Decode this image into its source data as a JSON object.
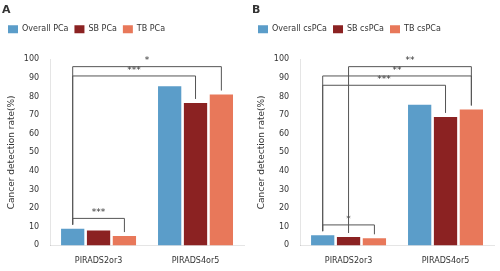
{
  "chart_data": [
    {
      "type": "bar",
      "title": "A",
      "categories": [
        "PIRADS2or3",
        "PIRADS4or5"
      ],
      "series": [
        {
          "name": "Overall PCa",
          "color": "#5B9DC9",
          "values": [
            9.0,
            85.5
          ]
        },
        {
          "name": "SB PCa",
          "color": "#8B2222",
          "values": [
            8.0,
            76.5
          ]
        },
        {
          "name": "TB PCa",
          "color": "#E8785A",
          "values": [
            5.0,
            81.0
          ]
        }
      ],
      "ylabel": "Cancer detection rate(%)",
      "ylim": [
        0,
        100
      ],
      "yticks": [
        0,
        10,
        20,
        30,
        40,
        50,
        60,
        70,
        80,
        90,
        100
      ],
      "grid": false,
      "legend": "upper left",
      "annotations": [
        {
          "label": "***",
          "y": 14.5,
          "from": {
            "category": "PIRADS2or3",
            "series": "Overall PCa"
          },
          "to": {
            "category": "PIRADS2or3",
            "series": "TB PCa"
          }
        },
        {
          "label": "***",
          "y": 91,
          "from": {
            "category": "PIRADS2or3",
            "series": "Overall PCa"
          },
          "to": {
            "category": "PIRADS4or5",
            "series": "SB PCa"
          }
        },
        {
          "label": "*",
          "y": 96,
          "from": {
            "category": "PIRADS2or3",
            "series": "Overall PCa"
          },
          "to": {
            "category": "PIRADS4or5",
            "series": "TB PCa"
          }
        }
      ]
    },
    {
      "type": "bar",
      "title": "B",
      "categories": [
        "PIRADS2or3",
        "PIRADS4or5"
      ],
      "series": [
        {
          "name": "Overall csPCa",
          "color": "#5B9DC9",
          "values": [
            5.5,
            75.5
          ]
        },
        {
          "name": "SB csPCa",
          "color": "#8B2222",
          "values": [
            4.5,
            69.0
          ]
        },
        {
          "name": "TB csPCa",
          "color": "#E8785A",
          "values": [
            3.8,
            73.0
          ]
        }
      ],
      "ylabel": "Cancer detection rate(%)",
      "ylim": [
        0,
        100
      ],
      "yticks": [
        0,
        10,
        20,
        30,
        40,
        50,
        60,
        70,
        80,
        90,
        100
      ],
      "grid": false,
      "legend": "upper left",
      "annotations": [
        {
          "label": "*",
          "y": 11,
          "from": {
            "category": "PIRADS2or3",
            "series": "Overall csPCa"
          },
          "to": {
            "category": "PIRADS2or3",
            "series": "TB csPCa"
          }
        },
        {
          "label": "***",
          "y": 86,
          "from": {
            "category": "PIRADS2or3",
            "series": "Overall csPCa"
          },
          "to": {
            "category": "PIRADS4or5",
            "series": "SB csPCa"
          }
        },
        {
          "label": "**",
          "y": 91,
          "from": {
            "category": "PIRADS2or3",
            "series": "Overall csPCa"
          },
          "to": {
            "category": "PIRADS4or5",
            "series": "TB csPCa"
          }
        },
        {
          "label": "**",
          "y": 96,
          "from": {
            "category": "PIRADS2or3",
            "series": "SB csPCa"
          },
          "to": {
            "category": "PIRADS4or5",
            "series": "TB csPCa"
          }
        }
      ]
    }
  ]
}
